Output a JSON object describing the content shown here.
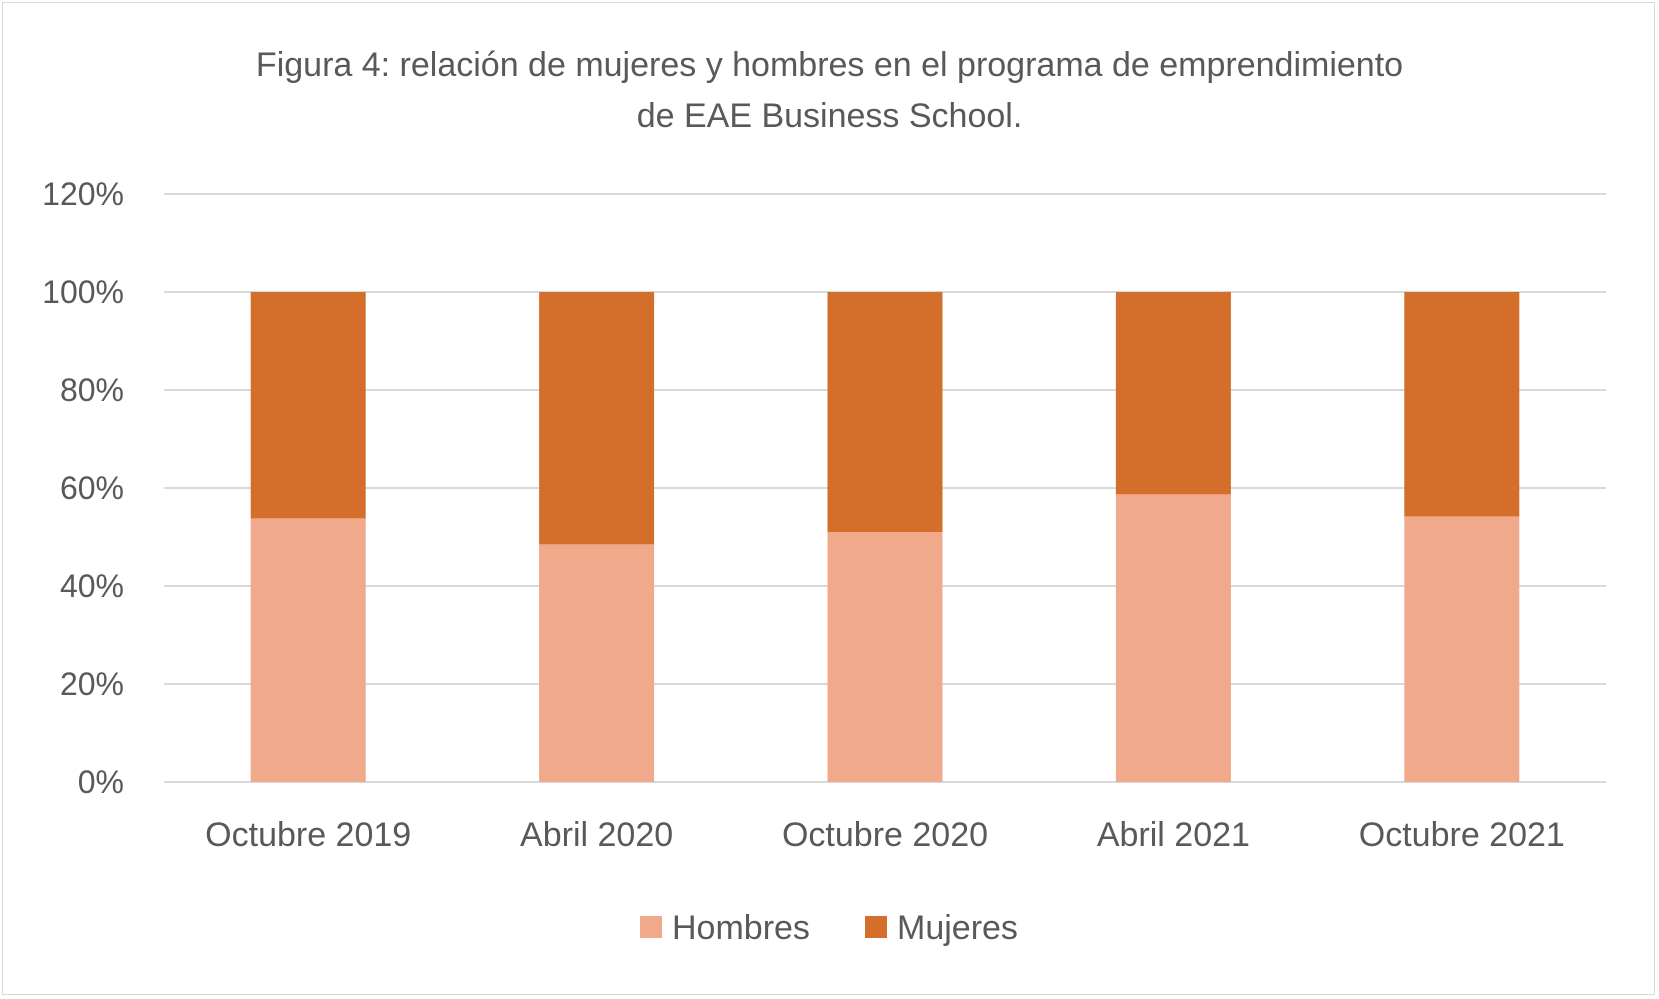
{
  "chart_data": {
    "type": "bar",
    "stacked": true,
    "title_lines": [
      "Figura 4: relación de mujeres y hombres en el programa de emprendimiento",
      "de EAE Business School."
    ],
    "categories": [
      "Octubre 2019",
      "Abril 2020",
      "Octubre 2020",
      "Abril 2021",
      "Octubre 2021"
    ],
    "series": [
      {
        "name": "Hombres",
        "color": "#F0A98A",
        "values": [
          0.538,
          0.485,
          0.51,
          0.587,
          0.542
        ]
      },
      {
        "name": "Mujeres",
        "color": "#D46E2B",
        "values": [
          0.462,
          0.515,
          0.49,
          0.413,
          0.458
        ]
      }
    ],
    "yticks": [
      "0%",
      "20%",
      "40%",
      "60%",
      "80%",
      "100%",
      "120%"
    ],
    "ylim": [
      0,
      1.2
    ],
    "grid": true,
    "legend": "bottom"
  }
}
